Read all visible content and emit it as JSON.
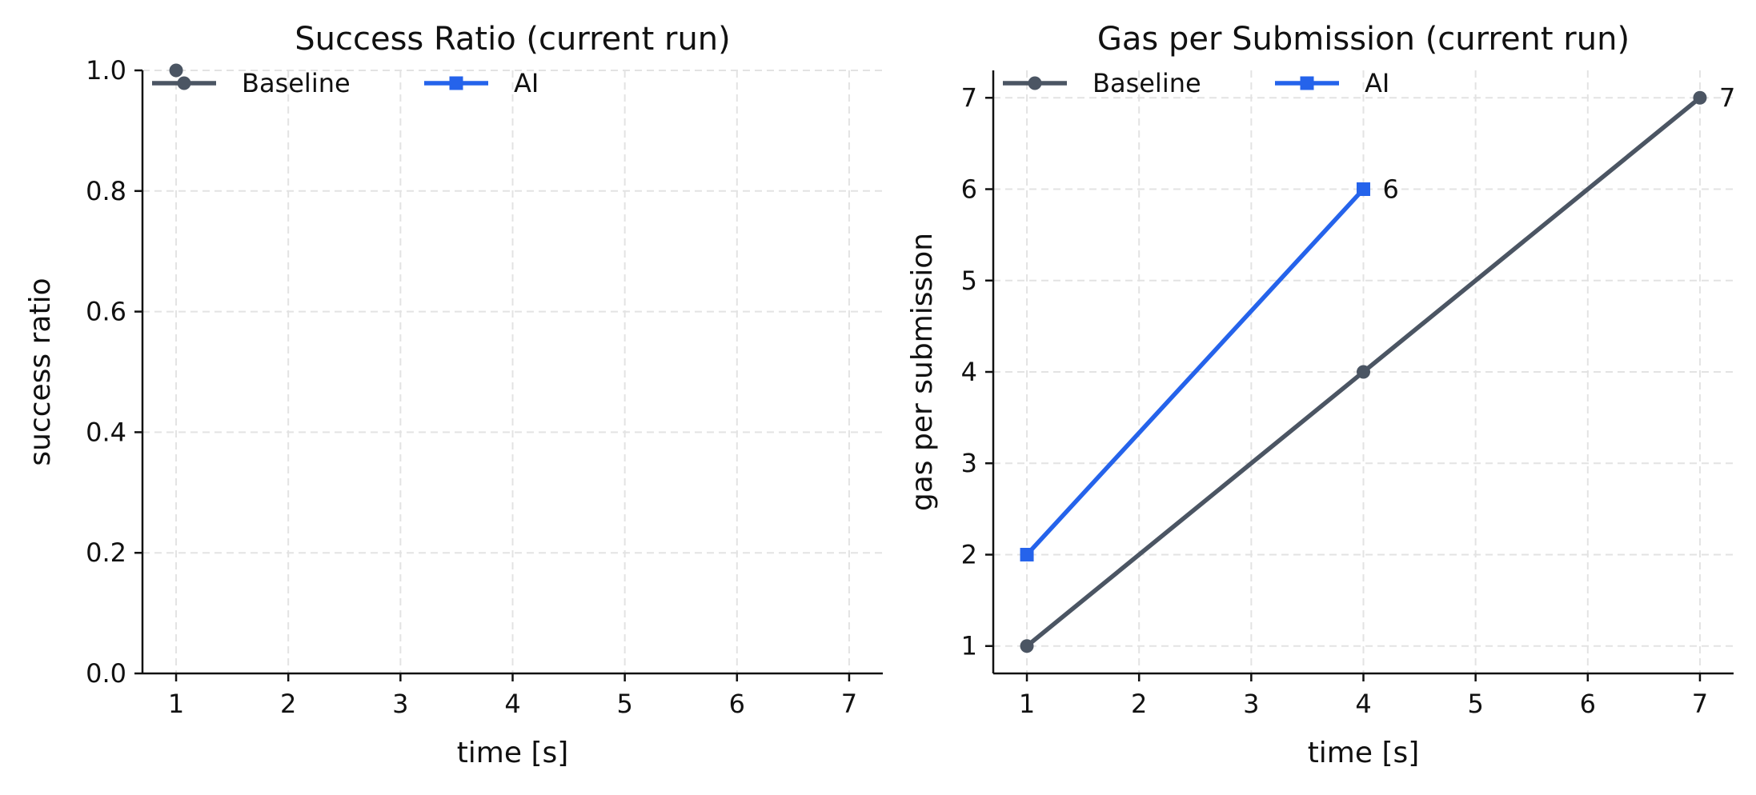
{
  "chart_data": [
    {
      "type": "line",
      "title": "Success Ratio (current run)",
      "xlabel": "time [s]",
      "ylabel": "success ratio",
      "xlim": [
        0.7,
        7.3
      ],
      "ylim": [
        0.0,
        1.0
      ],
      "xticks": [
        1,
        2,
        3,
        4,
        5,
        6,
        7
      ],
      "yticks": [
        0.0,
        0.2,
        0.4,
        0.6,
        0.8,
        1.0
      ],
      "ytick_labels": [
        "0.0",
        "0.2",
        "0.4",
        "0.6",
        "0.8",
        "1.0"
      ],
      "grid": true,
      "legend_position": "top-left",
      "series": [
        {
          "name": "Baseline",
          "marker": "circle",
          "color": "#4b5563",
          "x": [
            1
          ],
          "y": [
            1.0
          ],
          "point_labels": []
        },
        {
          "name": "AI",
          "marker": "square",
          "color": "#2563eb",
          "x": [],
          "y": [],
          "point_labels": []
        }
      ]
    },
    {
      "type": "line",
      "title": "Gas per Submission (current run)",
      "xlabel": "time [s]",
      "ylabel": "gas per submission",
      "xlim": [
        0.7,
        7.3
      ],
      "ylim": [
        0.7,
        7.3
      ],
      "xticks": [
        1,
        2,
        3,
        4,
        5,
        6,
        7
      ],
      "yticks": [
        1,
        2,
        3,
        4,
        5,
        6,
        7
      ],
      "ytick_labels": [
        "1",
        "2",
        "3",
        "4",
        "5",
        "6",
        "7"
      ],
      "grid": true,
      "legend_position": "top-left",
      "series": [
        {
          "name": "Baseline",
          "marker": "circle",
          "color": "#4b5563",
          "x": [
            1,
            4,
            7
          ],
          "y": [
            1,
            4,
            7
          ],
          "point_labels": [
            null,
            null,
            "7"
          ]
        },
        {
          "name": "AI",
          "marker": "square",
          "color": "#2563eb",
          "x": [
            1,
            4
          ],
          "y": [
            2,
            6
          ],
          "point_labels": [
            null,
            "6"
          ]
        }
      ]
    }
  ]
}
